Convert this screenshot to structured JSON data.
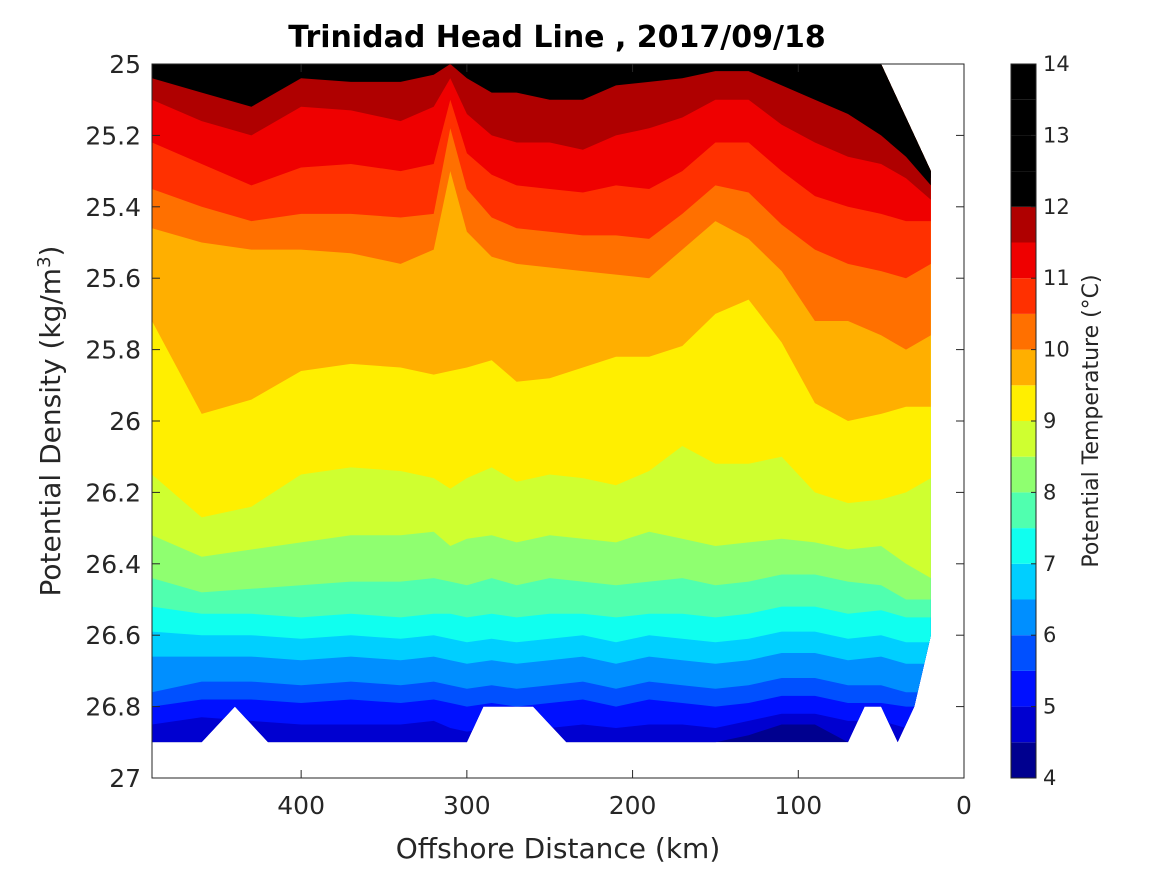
{
  "chart_data": {
    "type": "contour",
    "title": "Trinidad Head Line , 2017/09/18",
    "xlabel": "Offshore Distance (km)",
    "ylabel_main": "Potential Density (kg/m",
    "ylabel_sup": "3",
    "ylabel_close": ")",
    "x_reversed": true,
    "y_reversed": true,
    "xlim": [
      490,
      0
    ],
    "ylim": [
      25,
      27
    ],
    "xticks": [
      400,
      300,
      200,
      100,
      0
    ],
    "xtick_labels": [
      "400",
      "300",
      "200",
      "100",
      "0"
    ],
    "yticks": [
      25,
      25.2,
      25.4,
      25.6,
      25.8,
      26,
      26.2,
      26.4,
      26.6,
      26.8,
      27
    ],
    "ytick_labels": [
      "25",
      "25.2",
      "25.4",
      "25.6",
      "25.8",
      "26",
      "26.2",
      "26.4",
      "26.6",
      "26.8",
      "27"
    ],
    "colorbar": {
      "label": "Potential Temperature (°C)",
      "levels": [
        4,
        4.5,
        5,
        5.5,
        6,
        6.5,
        7,
        7.5,
        8,
        8.5,
        9,
        9.5,
        10,
        10.5,
        11,
        11.5,
        12,
        12.5,
        13,
        13.5,
        14
      ],
      "ticks": [
        4,
        5,
        6,
        7,
        8,
        9,
        10,
        11,
        12,
        13,
        14
      ],
      "tick_labels": [
        "4",
        "5",
        "6",
        "7",
        "8",
        "9",
        "10",
        "11",
        "12",
        "13",
        "14"
      ],
      "colors": [
        "#00008f",
        "#0000d0",
        "#0010ff",
        "#0050ff",
        "#008fff",
        "#00cfff",
        "#10ffef",
        "#50ffaf",
        "#8fff70",
        "#cfff30",
        "#ffef00",
        "#ffaf00",
        "#ff7000",
        "#ff3000",
        "#ef0000",
        "#af0000"
      ],
      "colormap": "jet"
    },
    "data_bounds": {
      "x": [
        490,
        480,
        460,
        440,
        420,
        400,
        380,
        360,
        340,
        320,
        310,
        300,
        290,
        280,
        260,
        240,
        220,
        200,
        180,
        160,
        140,
        120,
        100,
        80,
        70,
        60,
        50,
        40,
        30,
        20
      ],
      "density_bottom": [
        26.9,
        26.9,
        26.9,
        26.8,
        26.9,
        26.9,
        26.9,
        26.9,
        26.9,
        26.9,
        26.9,
        26.9,
        26.8,
        26.8,
        26.8,
        26.9,
        26.9,
        26.9,
        26.9,
        26.9,
        26.9,
        26.9,
        26.9,
        26.9,
        26.9,
        26.8,
        26.8,
        26.9,
        26.8,
        26.6
      ],
      "density_top": [
        25,
        25,
        25,
        25,
        25,
        25,
        25,
        25,
        25,
        25,
        25,
        25,
        25,
        25,
        25,
        25,
        25,
        25,
        25,
        25,
        25,
        25,
        25,
        25,
        25,
        25,
        25,
        25.1,
        25.2,
        25.3
      ]
    },
    "contours": {
      "levels": [
        4.5,
        5,
        5.5,
        6,
        6.5,
        7,
        7.5,
        8,
        8.5,
        9,
        9.5,
        10,
        10.5,
        11,
        11.5,
        12,
        12.5,
        13
      ],
      "x": [
        490,
        460,
        430,
        400,
        370,
        340,
        320,
        310,
        300,
        285,
        270,
        250,
        230,
        210,
        190,
        170,
        150,
        130,
        110,
        90,
        70,
        50,
        35,
        20
      ],
      "density": [
        [
          26.9,
          26.9,
          26.9,
          26.9,
          26.9,
          26.9,
          26.9,
          26.9,
          26.9,
          26.9,
          26.9,
          26.9,
          26.9,
          26.9,
          26.9,
          26.9,
          26.9,
          26.88,
          26.85,
          26.85,
          26.9,
          26.9,
          26.9,
          26.9
        ],
        [
          26.85,
          26.83,
          26.84,
          26.85,
          26.85,
          26.85,
          26.84,
          26.86,
          26.87,
          26.86,
          26.86,
          26.86,
          26.85,
          26.86,
          26.85,
          26.85,
          26.86,
          26.84,
          26.82,
          26.82,
          26.84,
          26.84,
          26.86,
          26.86
        ],
        [
          26.8,
          26.78,
          26.78,
          26.79,
          26.78,
          26.79,
          26.78,
          26.79,
          26.8,
          26.79,
          26.8,
          26.79,
          26.78,
          26.8,
          26.78,
          26.79,
          26.8,
          26.79,
          26.77,
          26.77,
          26.79,
          26.79,
          26.8,
          26.8
        ],
        [
          26.76,
          26.73,
          26.73,
          26.74,
          26.73,
          26.74,
          26.73,
          26.74,
          26.75,
          26.74,
          26.75,
          26.74,
          26.73,
          26.75,
          26.73,
          26.74,
          26.75,
          26.74,
          26.72,
          26.72,
          26.74,
          26.74,
          26.76,
          26.76
        ],
        [
          26.66,
          26.66,
          26.66,
          26.67,
          26.66,
          26.67,
          26.66,
          26.67,
          26.68,
          26.67,
          26.68,
          26.67,
          26.66,
          26.68,
          26.66,
          26.67,
          26.68,
          26.67,
          26.65,
          26.65,
          26.67,
          26.66,
          26.68,
          26.68
        ],
        [
          26.59,
          26.6,
          26.6,
          26.61,
          26.6,
          26.61,
          26.6,
          26.61,
          26.62,
          26.61,
          26.62,
          26.61,
          26.6,
          26.62,
          26.6,
          26.61,
          26.62,
          26.61,
          26.59,
          26.59,
          26.61,
          26.6,
          26.62,
          26.62
        ],
        [
          26.52,
          26.54,
          26.54,
          26.55,
          26.54,
          26.55,
          26.54,
          26.54,
          26.55,
          26.54,
          26.55,
          26.54,
          26.54,
          26.55,
          26.54,
          26.54,
          26.55,
          26.54,
          26.52,
          26.52,
          26.54,
          26.53,
          26.55,
          26.55
        ],
        [
          26.44,
          26.48,
          26.47,
          26.46,
          26.45,
          26.45,
          26.44,
          26.45,
          26.46,
          26.44,
          26.46,
          26.44,
          26.45,
          26.46,
          26.45,
          26.44,
          26.46,
          26.45,
          26.43,
          26.43,
          26.45,
          26.46,
          26.5,
          26.5
        ],
        [
          26.32,
          26.38,
          26.36,
          26.34,
          26.32,
          26.32,
          26.31,
          26.35,
          26.33,
          26.32,
          26.34,
          26.32,
          26.33,
          26.34,
          26.31,
          26.33,
          26.35,
          26.34,
          26.33,
          26.34,
          26.36,
          26.35,
          26.4,
          26.44
        ],
        [
          26.15,
          26.27,
          26.24,
          26.15,
          26.13,
          26.14,
          26.16,
          26.19,
          26.16,
          26.13,
          26.17,
          26.15,
          26.16,
          26.18,
          26.14,
          26.07,
          26.12,
          26.12,
          26.1,
          26.2,
          26.23,
          26.22,
          26.2,
          26.16
        ],
        [
          25.72,
          25.98,
          25.94,
          25.86,
          25.84,
          25.85,
          25.87,
          25.86,
          25.85,
          25.83,
          25.89,
          25.88,
          25.85,
          25.82,
          25.82,
          25.79,
          25.7,
          25.66,
          25.78,
          25.95,
          26.0,
          25.98,
          25.96,
          25.96
        ],
        [
          25.46,
          25.5,
          25.52,
          25.52,
          25.53,
          25.56,
          25.52,
          25.3,
          25.47,
          25.54,
          25.56,
          25.57,
          25.58,
          25.59,
          25.6,
          25.52,
          25.44,
          25.49,
          25.58,
          25.72,
          25.72,
          25.76,
          25.8,
          25.76
        ],
        [
          25.35,
          25.4,
          25.44,
          25.42,
          25.42,
          25.43,
          25.42,
          25.18,
          25.35,
          25.43,
          25.46,
          25.47,
          25.48,
          25.48,
          25.49,
          25.42,
          25.34,
          25.36,
          25.45,
          25.52,
          25.56,
          25.58,
          25.6,
          25.56
        ],
        [
          25.22,
          25.28,
          25.34,
          25.29,
          25.28,
          25.3,
          25.28,
          25.1,
          25.25,
          25.31,
          25.34,
          25.35,
          25.36,
          25.34,
          25.35,
          25.3,
          25.22,
          25.22,
          25.3,
          25.37,
          25.4,
          25.42,
          25.44,
          25.44
        ],
        [
          25.1,
          25.16,
          25.2,
          25.12,
          25.13,
          25.16,
          25.12,
          25.04,
          25.14,
          25.2,
          25.22,
          25.22,
          25.24,
          25.2,
          25.18,
          25.15,
          25.1,
          25.1,
          25.17,
          25.22,
          25.26,
          25.28,
          25.32,
          25.38
        ],
        [
          25.04,
          25.08,
          25.12,
          25.04,
          25.05,
          25.05,
          25.03,
          25.0,
          25.04,
          25.08,
          25.08,
          25.1,
          25.1,
          25.06,
          25.05,
          25.04,
          25.02,
          25.02,
          25.06,
          25.1,
          25.14,
          25.2,
          25.26,
          25.34
        ],
        [
          25.0,
          25.03,
          25.08,
          25.0,
          25.0,
          25.0,
          25.0,
          25.0,
          25.0,
          25.0,
          25.02,
          25.05,
          25.05,
          25.02,
          25.0,
          25.0,
          25.0,
          25.0,
          25.0,
          25.0,
          25.0,
          25.0,
          25.2,
          25.32
        ],
        [
          25.0,
          25.0,
          25.06,
          25.0,
          25.0,
          25.0,
          25.0,
          25.0,
          25.0,
          25.0,
          25.0,
          25.0,
          25.0,
          25.0,
          25.0,
          25.0,
          25.0,
          25.0,
          25.0,
          25.0,
          25.0,
          25.0,
          25.0,
          25.0
        ]
      ]
    }
  }
}
